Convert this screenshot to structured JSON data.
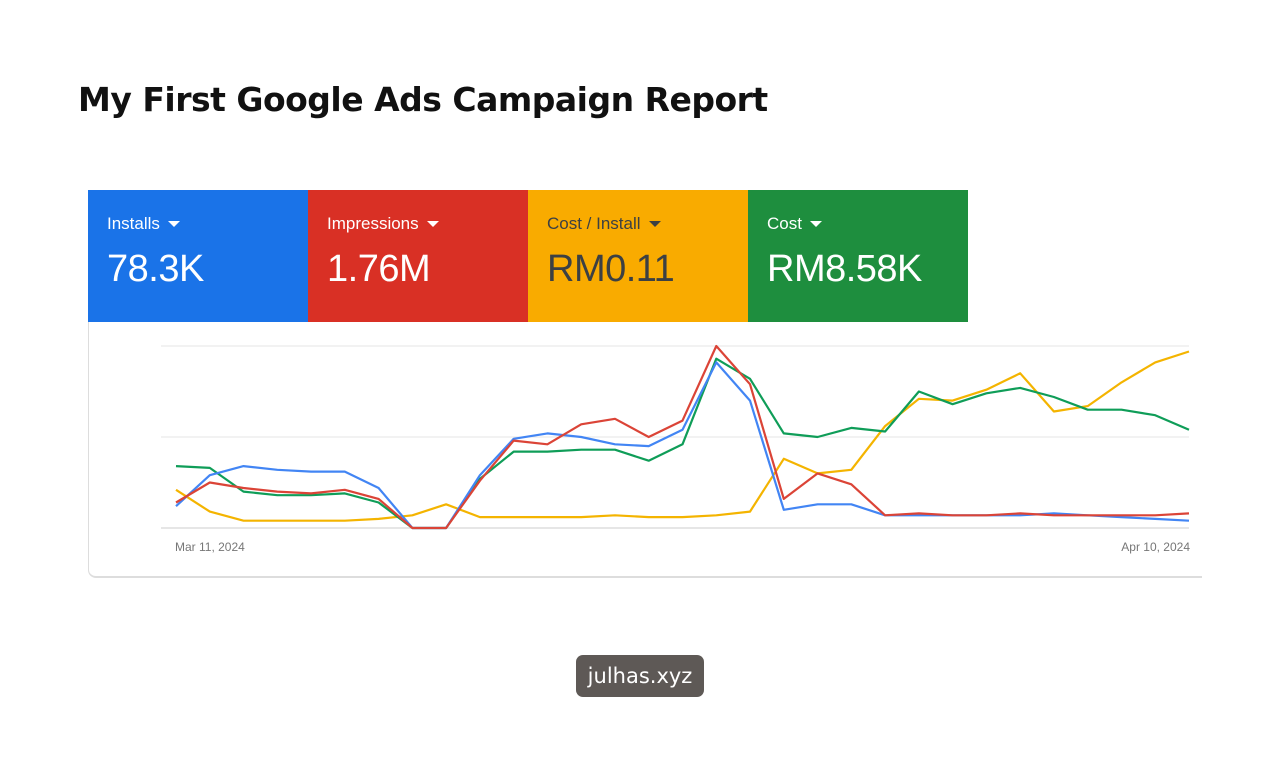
{
  "title": "My First Google Ads Campaign Report",
  "metrics": [
    {
      "label": "Installs",
      "value": "78.3K",
      "bg": "#1a73e8",
      "fg": "#ffffff"
    },
    {
      "label": "Impressions",
      "value": "1.76M",
      "bg": "#d93025",
      "fg": "#ffffff"
    },
    {
      "label": "Cost / Install",
      "value": "RM0.11",
      "bg": "#f9ab00",
      "fg": "#3c4043"
    },
    {
      "label": "Cost",
      "value": "RM8.58K",
      "bg": "#1e8e3e",
      "fg": "#ffffff"
    }
  ],
  "watermark": "julhas.xyz",
  "chart_data": {
    "type": "line",
    "x_start_label": "Mar 11, 2024",
    "x_end_label": "Apr 10, 2024",
    "x_range": [
      "2024-03-11",
      "2024-04-10"
    ],
    "ylim": [
      0,
      100
    ],
    "y_note_scale": "relative (no y-axis labels shown)",
    "grid": true,
    "series": [
      {
        "metric": "Installs",
        "color": "#4285f4",
        "values": [
          12,
          29,
          34,
          32,
          31,
          31,
          22,
          0,
          0,
          29,
          49,
          52,
          50,
          46,
          45,
          54,
          91,
          70,
          10,
          13,
          13,
          7,
          7,
          7,
          7,
          7,
          8,
          7,
          6,
          5,
          4
        ]
      },
      {
        "metric": "Impressions",
        "color": "#db4437",
        "values": [
          14,
          25,
          22,
          20,
          19,
          21,
          16,
          0,
          0,
          26,
          48,
          46,
          57,
          60,
          50,
          59,
          100,
          79,
          16,
          30,
          24,
          7,
          8,
          7,
          7,
          8,
          7,
          7,
          7,
          7,
          8
        ]
      },
      {
        "metric": "Cost / Install",
        "color": "#f4b400",
        "values": [
          21,
          9,
          4,
          4,
          4,
          4,
          5,
          7,
          13,
          6,
          6,
          6,
          6,
          7,
          6,
          6,
          7,
          9,
          38,
          30,
          32,
          56,
          71,
          70,
          76,
          85,
          64,
          67,
          80,
          91,
          97
        ]
      },
      {
        "metric": "Cost",
        "color": "#0f9d58",
        "values": [
          34,
          33,
          20,
          18,
          18,
          19,
          14,
          0,
          0,
          27,
          42,
          42,
          43,
          43,
          37,
          46,
          93,
          82,
          52,
          50,
          55,
          53,
          75,
          68,
          74,
          77,
          72,
          65,
          65,
          62,
          54
        ]
      }
    ]
  }
}
